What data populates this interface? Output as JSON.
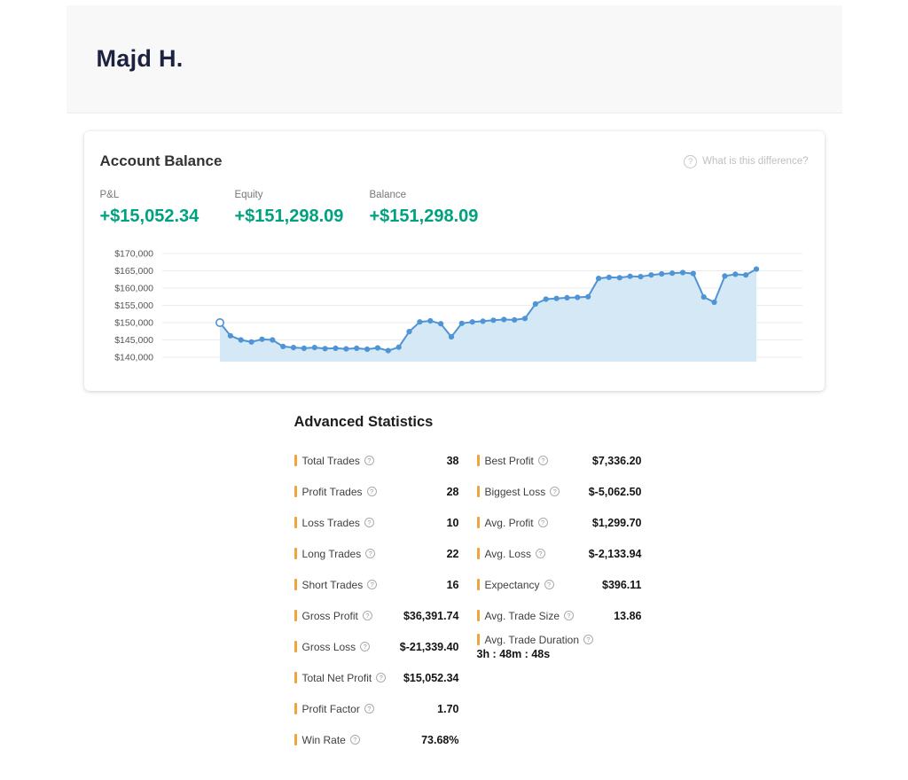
{
  "colors": {
    "positive_value": "#00a17e",
    "stat_accent": "#f0a43e",
    "chart_line": "#4f94d4",
    "chart_fill": "#d4e8f6",
    "grid_line": "#ebebeb"
  },
  "header": {
    "user_name": "Majd H."
  },
  "account_balance": {
    "title": "Account Balance",
    "help_icon_glyph": "?",
    "help_text": "What is this difference?",
    "stats": [
      {
        "label": "P&L",
        "value": "+$15,052.34"
      },
      {
        "label": "Equity",
        "value": "+$151,298.09"
      },
      {
        "label": "Balance",
        "value": "+$151,298.09"
      }
    ]
  },
  "chart_data": {
    "type": "line",
    "grid": true,
    "legend": false,
    "ylim": [
      140000,
      170000
    ],
    "y_ticks": [
      {
        "label": "$170,000",
        "value": 170000
      },
      {
        "label": "$165,000",
        "value": 165000
      },
      {
        "label": "$160,000",
        "value": 160000
      },
      {
        "label": "$155,000",
        "value": 155000
      },
      {
        "label": "$150,000",
        "value": 150000
      },
      {
        "label": "$145,000",
        "value": 145000
      },
      {
        "label": "$140,000",
        "value": 140000
      }
    ],
    "first_point_open": true,
    "values": [
      150000,
      146200,
      145000,
      144400,
      145200,
      145000,
      143100,
      142800,
      142600,
      142800,
      142500,
      142600,
      142400,
      142600,
      142300,
      142700,
      141900,
      142900,
      147400,
      150200,
      150500,
      149700,
      145900,
      149800,
      150200,
      150400,
      150700,
      150900,
      150800,
      151200,
      155400,
      156800,
      157000,
      157200,
      157300,
      157500,
      162800,
      163100,
      163000,
      163400,
      163300,
      163800,
      164100,
      164300,
      164500,
      164200,
      157400,
      155900,
      163500,
      164000,
      163800,
      165500
    ]
  },
  "advanced_stats": {
    "title": "Advanced Statistics",
    "help_icon_glyph": "?",
    "left_column": [
      {
        "label": "Total Trades",
        "value": "38"
      },
      {
        "label": "Profit Trades",
        "value": "28"
      },
      {
        "label": "Loss Trades",
        "value": "10"
      },
      {
        "label": "Long Trades",
        "value": "22"
      },
      {
        "label": "Short Trades",
        "value": "16"
      },
      {
        "label": "Gross Profit",
        "value": "$36,391.74"
      },
      {
        "label": "Gross Loss",
        "value": "$-21,339.40"
      },
      {
        "label": "Total Net Profit",
        "value": "$15,052.34"
      },
      {
        "label": "Profit Factor",
        "value": "1.70"
      },
      {
        "label": "Win Rate",
        "value": "73.68%"
      }
    ],
    "right_column": [
      {
        "label": "Best Profit",
        "value": "$7,336.20"
      },
      {
        "label": "Biggest Loss",
        "value": "$-5,062.50"
      },
      {
        "label": "Avg. Profit",
        "value": "$1,299.70"
      },
      {
        "label": "Avg. Loss",
        "value": "$-2,133.94"
      },
      {
        "label": "Expectancy",
        "value": "$396.11"
      },
      {
        "label": "Avg. Trade Size",
        "value": "13.86"
      },
      {
        "label": "Avg. Trade Duration",
        "value": "3h : 48m : 48s",
        "stacked": true
      }
    ]
  }
}
